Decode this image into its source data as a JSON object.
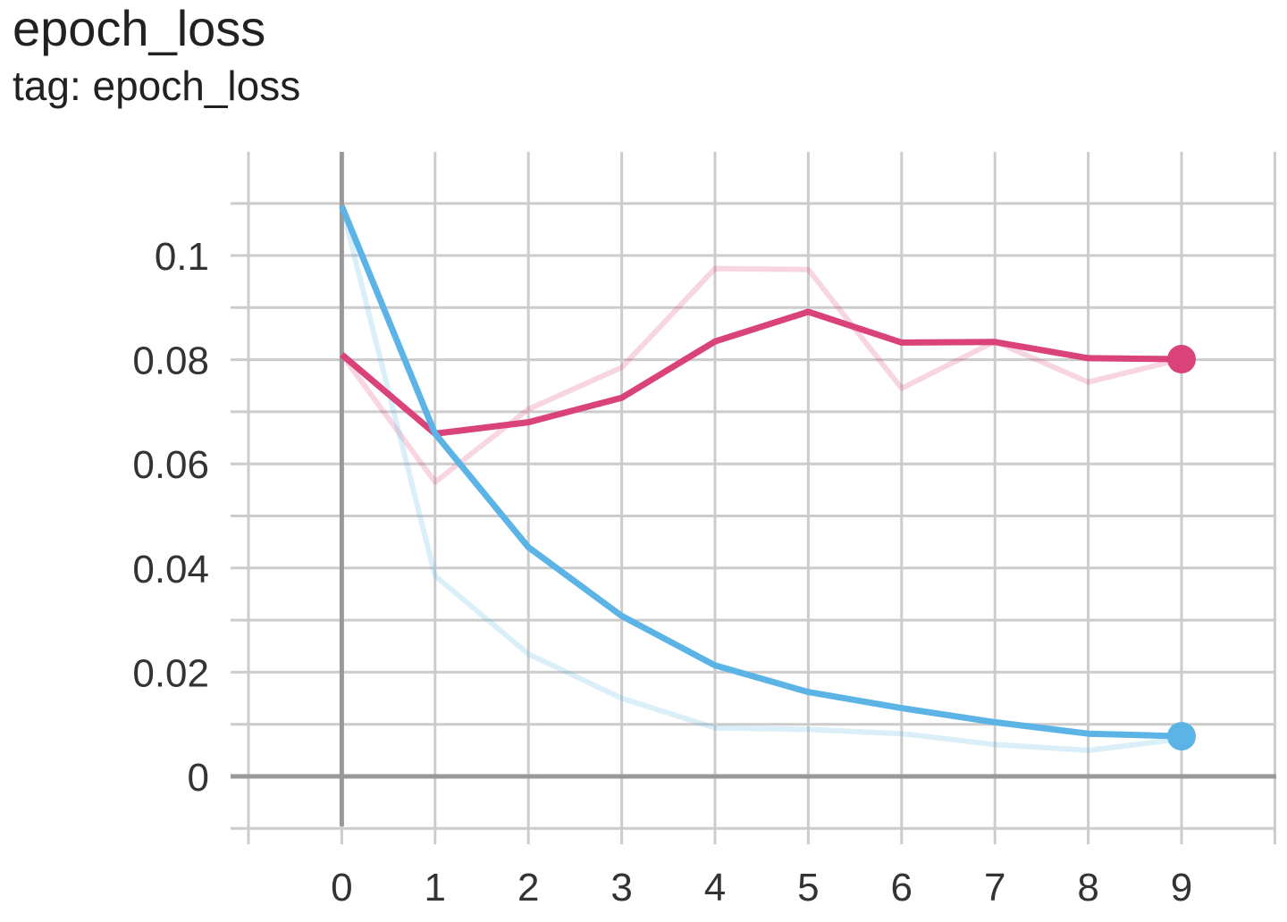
{
  "header": {
    "title": "epoch_loss",
    "subtitle": "tag: epoch_loss"
  },
  "chart_data": {
    "type": "line",
    "title": "epoch_loss",
    "subtitle": "tag: epoch_loss",
    "xlabel": "",
    "ylabel": "",
    "x": [
      0,
      1,
      2,
      3,
      4,
      5,
      6,
      7,
      8,
      9
    ],
    "xlim": [
      -1,
      10
    ],
    "ylim": [
      -0.01,
      0.12
    ],
    "x_ticks": [
      "0",
      "1",
      "2",
      "3",
      "4",
      "5",
      "6",
      "7",
      "8",
      "9"
    ],
    "y_ticks": [
      {
        "value": 0,
        "label": "0"
      },
      {
        "value": 0.02,
        "label": "0.02"
      },
      {
        "value": 0.04,
        "label": "0.04"
      },
      {
        "value": 0.06,
        "label": "0.06"
      },
      {
        "value": 0.08,
        "label": "0.08"
      },
      {
        "value": 0.1,
        "label": "0.1"
      }
    ],
    "grid": true,
    "legend": "none",
    "series": [
      {
        "color": "#d9437a",
        "raw_values": [
          0.081,
          0.0565,
          0.0705,
          0.0785,
          0.0975,
          0.0973,
          0.0745,
          0.0835,
          0.0757,
          0.0801
        ],
        "smoothed_values": [
          0.081,
          0.0658,
          0.068,
          0.0727,
          0.0835,
          0.0892,
          0.0833,
          0.0834,
          0.0803,
          0.0801
        ]
      },
      {
        "color": "#5bb4e5",
        "raw_values": [
          0.1095,
          0.0385,
          0.0235,
          0.015,
          0.0093,
          0.009,
          0.0082,
          0.0061,
          0.005,
          0.0072
        ],
        "smoothed_values": [
          0.1095,
          0.0658,
          0.044,
          0.0308,
          0.0213,
          0.0162,
          0.0131,
          0.0104,
          0.0082,
          0.0077
        ]
      }
    ]
  }
}
